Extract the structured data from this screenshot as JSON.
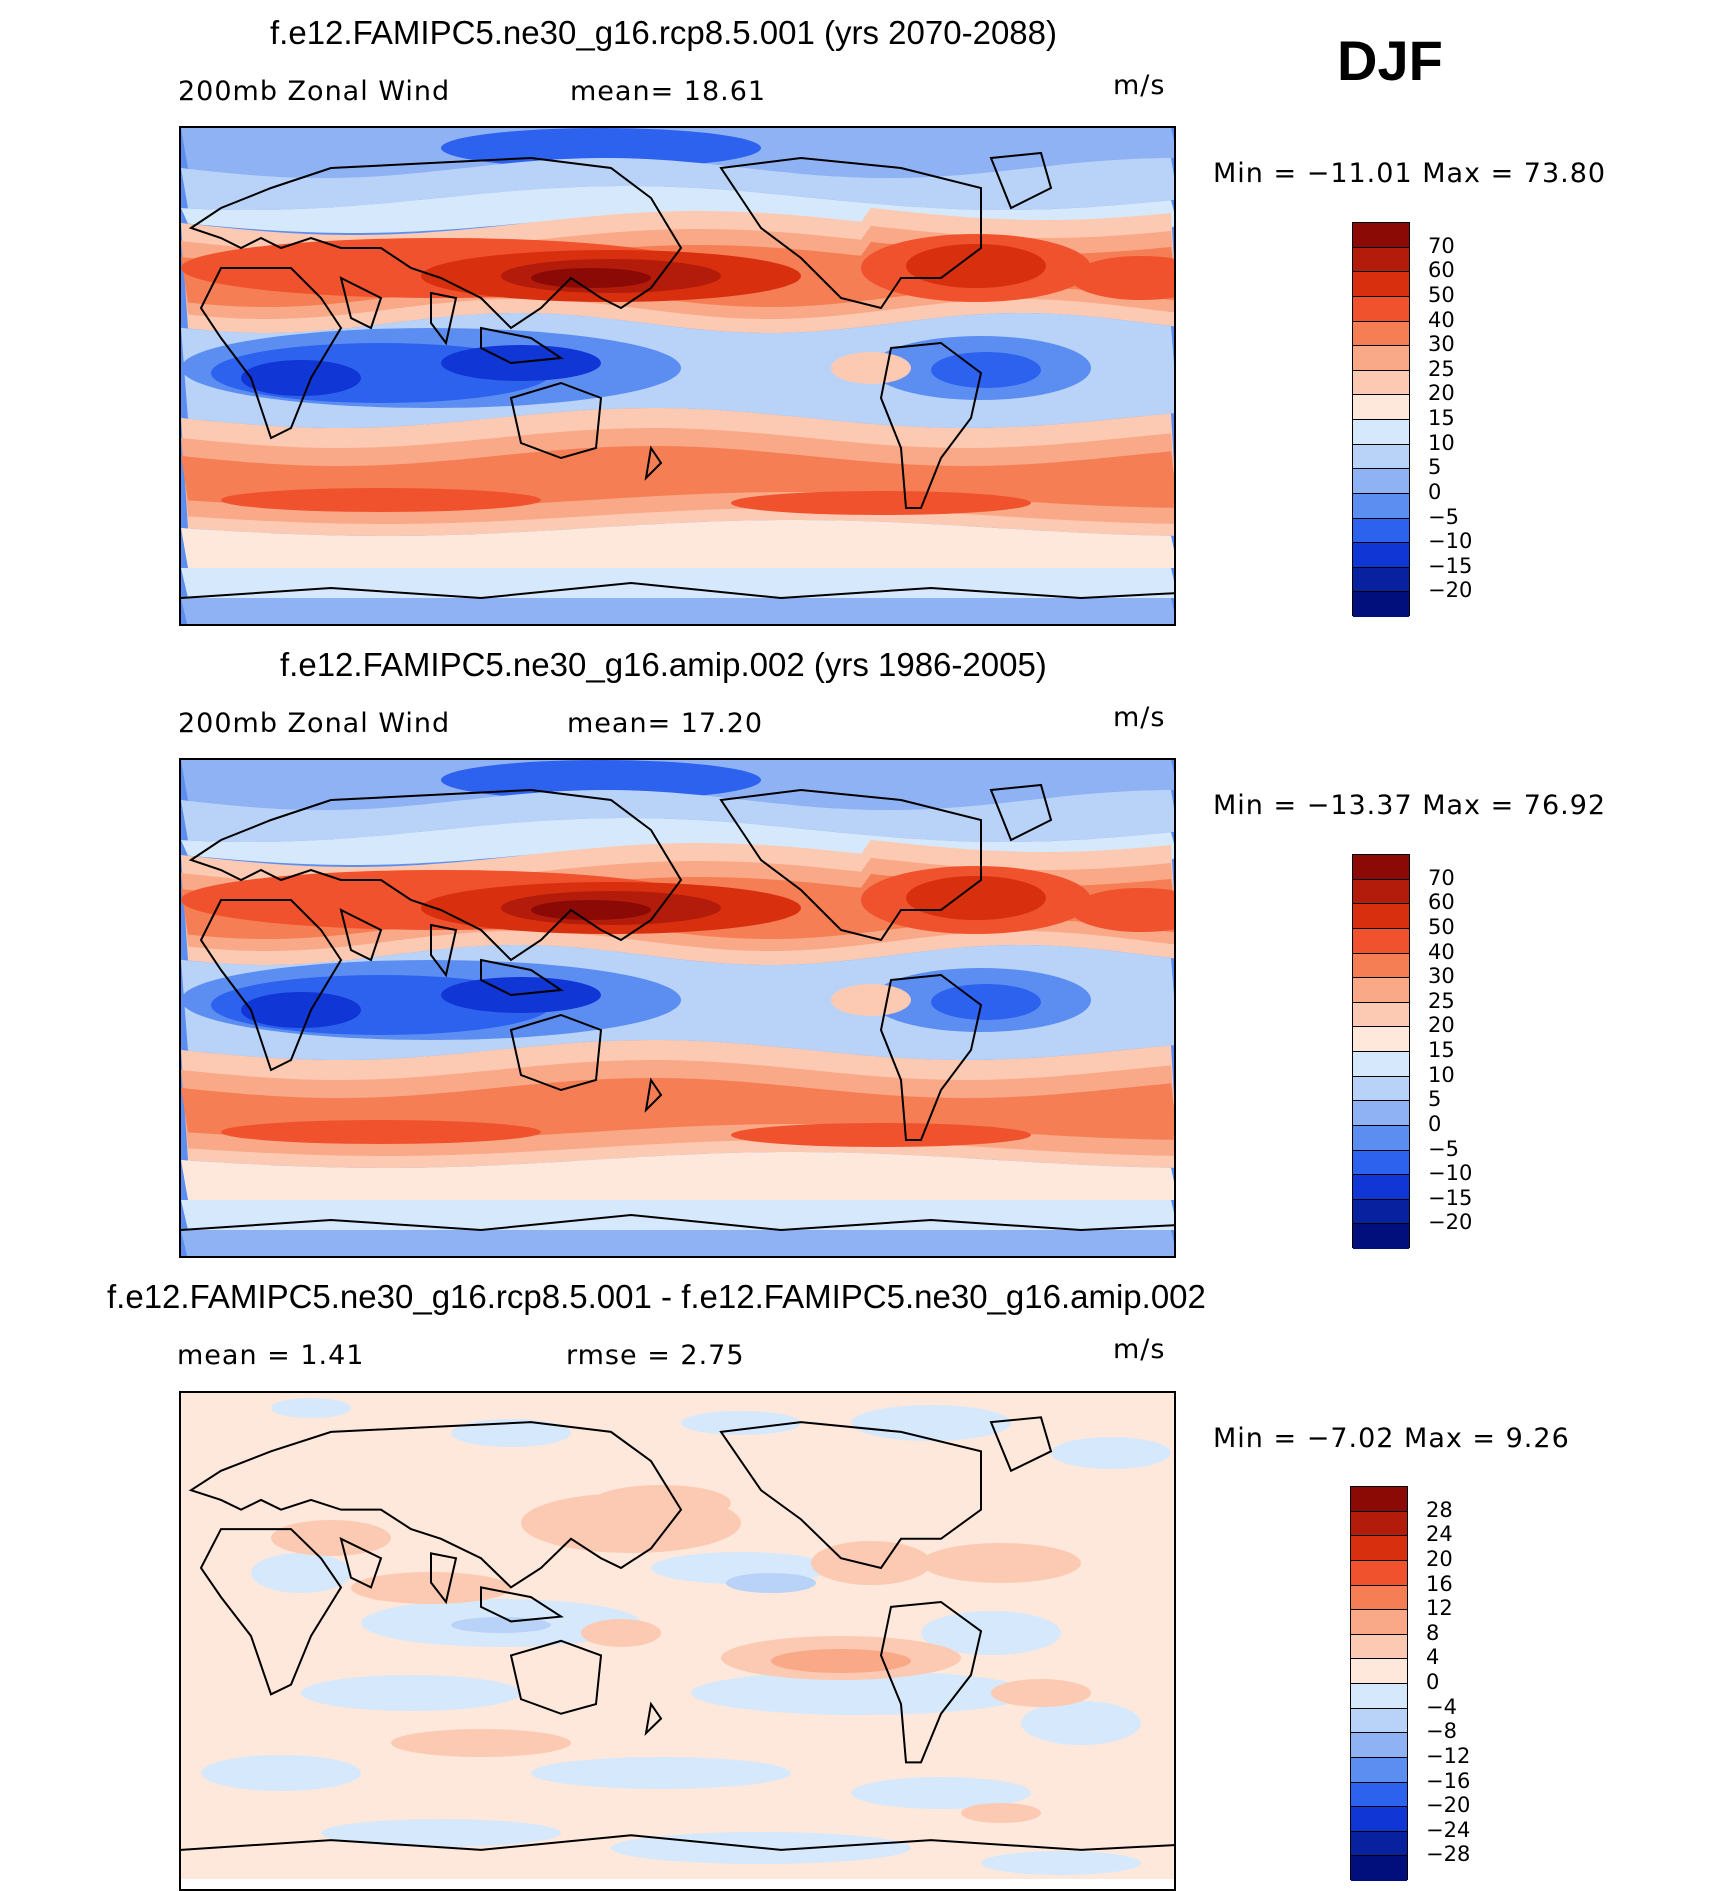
{
  "season": "DJF",
  "panels": [
    {
      "id": "p1",
      "title": "f.e12.FAMIPC5.ne30_g16.rcp8.5.001 (yrs 2070-2088)",
      "left_label": "200mb  Zonal  Wind",
      "center_label": "mean=   18.61",
      "units": "m/s",
      "minmax": "Min  =  −11.01  Max  =    73.80",
      "field_kind": "abs",
      "colorbar": {
        "labels": [
          "70",
          "60",
          "50",
          "40",
          "30",
          "25",
          "20",
          "15",
          "10",
          "5",
          "0",
          "−5",
          "−10",
          "−15",
          "−20"
        ],
        "colors": [
          "#8b0a06",
          "#b31b0b",
          "#d8300f",
          "#f0522d",
          "#f57e55",
          "#f9a888",
          "#fccab2",
          "#fde8db",
          "#d6e8fb",
          "#b8d2f8",
          "#8fb2f5",
          "#5c8ef2",
          "#2d62ef",
          "#1036d6",
          "#08219e",
          "#000f7c"
        ]
      },
      "features": [
        {
          "type": "nh_jet_asia",
          "strength": "strong"
        },
        {
          "type": "sh_jet",
          "strength": "moderate"
        }
      ]
    },
    {
      "id": "p2",
      "title": "f.e12.FAMIPC5.ne30_g16.amip.002 (yrs 1986-2005)",
      "left_label": "200mb  Zonal  Wind",
      "center_label": "mean=   17.20",
      "units": "m/s",
      "minmax": "Min  =  −13.37  Max  =    76.92",
      "field_kind": "abs",
      "colorbar": {
        "labels": [
          "70",
          "60",
          "50",
          "40",
          "30",
          "25",
          "20",
          "15",
          "10",
          "5",
          "0",
          "−5",
          "−10",
          "−15",
          "−20"
        ],
        "colors": [
          "#8b0a06",
          "#b31b0b",
          "#d8300f",
          "#f0522d",
          "#f57e55",
          "#f9a888",
          "#fccab2",
          "#fde8db",
          "#d6e8fb",
          "#b8d2f8",
          "#8fb2f5",
          "#5c8ef2",
          "#2d62ef",
          "#1036d6",
          "#08219e",
          "#000f7c"
        ]
      }
    },
    {
      "id": "p3",
      "title": "f.e12.FAMIPC5.ne30_g16.rcp8.5.001 - f.e12.FAMIPC5.ne30_g16.amip.002",
      "left_label": "mean  =      1.41",
      "center_label": "rmse  =      2.75",
      "units": "m/s",
      "minmax": "Min  =    −7.02  Max  =      9.26",
      "field_kind": "diff",
      "colorbar": {
        "labels": [
          "28",
          "24",
          "20",
          "16",
          "12",
          "8",
          "4",
          "0",
          "−4",
          "−8",
          "−12",
          "−16",
          "−20",
          "−24",
          "−28"
        ],
        "colors": [
          "#8b0a06",
          "#b31b0b",
          "#d8300f",
          "#f0522d",
          "#f57e55",
          "#f9a888",
          "#fccab2",
          "#fde8db",
          "#d6e8fb",
          "#b8d2f8",
          "#8fb2f5",
          "#5c8ef2",
          "#2d62ef",
          "#1036d6",
          "#08219e",
          "#000f7c"
        ]
      }
    }
  ]
}
